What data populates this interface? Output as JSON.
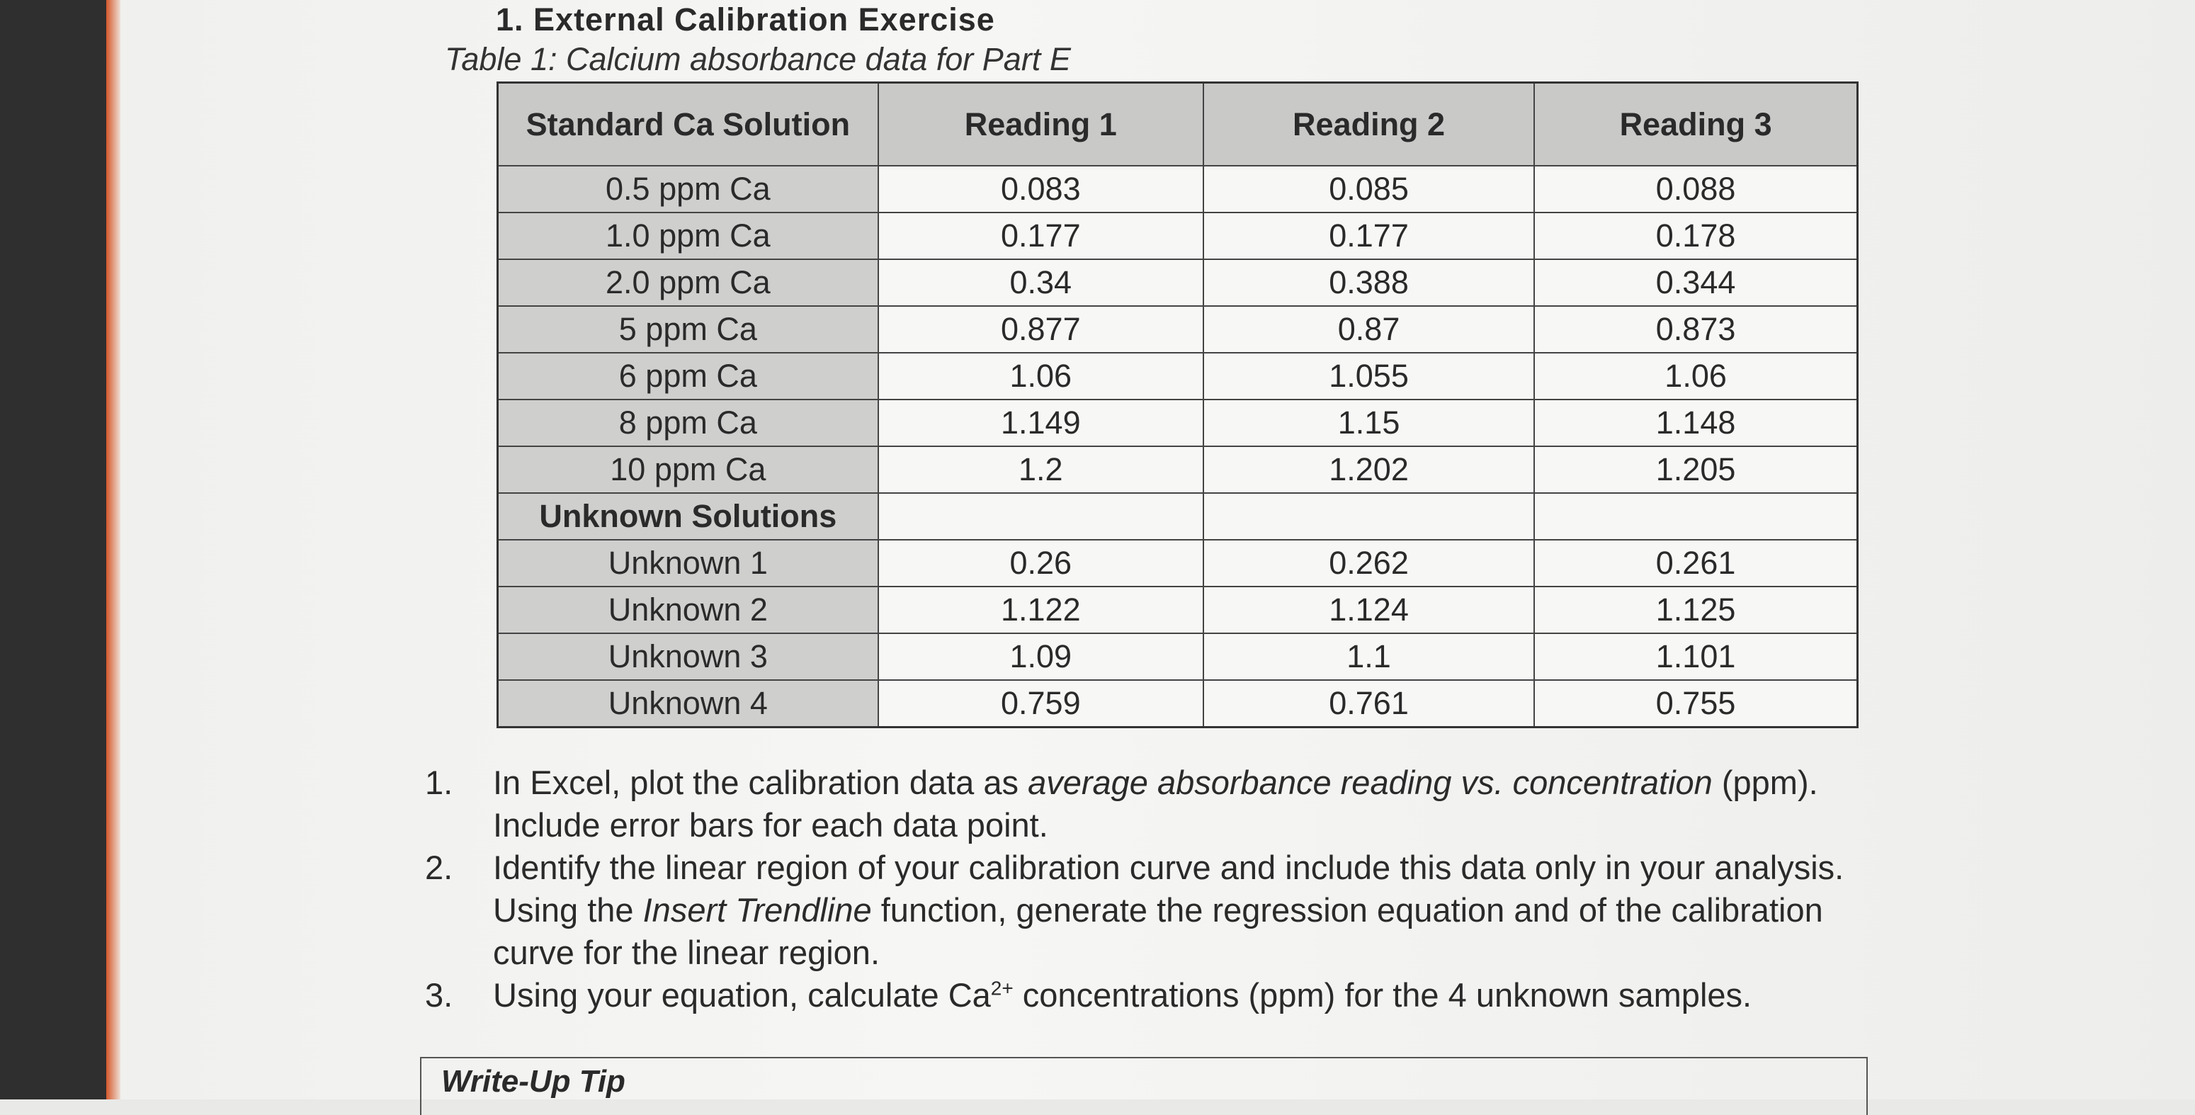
{
  "title": "1. External Calibration Exercise",
  "table": {
    "caption": "Table 1: Calcium absorbance data for Part E",
    "header": [
      "Standard Ca Solution",
      "Reading 1",
      "Reading 2",
      "Reading 3"
    ],
    "rows": [
      [
        "0.5 ppm Ca",
        "0.083",
        "0.085",
        "0.088"
      ],
      [
        "1.0 ppm Ca",
        "0.177",
        "0.177",
        "0.178"
      ],
      [
        "2.0 ppm Ca",
        "0.34",
        "0.388",
        "0.344"
      ],
      [
        "5 ppm Ca",
        "0.877",
        "0.87",
        "0.873"
      ],
      [
        "6 ppm Ca",
        "1.06",
        "1.055",
        "1.06"
      ],
      [
        "8 ppm Ca",
        "1.149",
        "1.15",
        "1.148"
      ],
      [
        "10 ppm Ca",
        "1.2",
        "1.202",
        "1.205"
      ]
    ],
    "section": "Unknown Solutions",
    "unknown_rows": [
      [
        "Unknown 1",
        "0.26",
        "0.262",
        "0.261"
      ],
      [
        "Unknown 2",
        "1.122",
        "1.124",
        "1.125"
      ],
      [
        "Unknown 3",
        "1.09",
        "1.1",
        "1.101"
      ],
      [
        "Unknown 4",
        "0.759",
        "0.761",
        "0.755"
      ]
    ]
  },
  "instructions": [
    {
      "number": "1.",
      "parts": [
        "In Excel, plot the calibration data as ",
        "average absorbance reading vs. concentration",
        " (ppm). Include error bars for each data point."
      ]
    },
    {
      "number": "2.",
      "parts": [
        "Identify the linear region of your calibration curve and include this data only in your analysis. Using the ",
        "Insert Trendline",
        " function, generate the regression equation and of the calibration curve for the linear region."
      ]
    },
    {
      "number": "3.",
      "parts": [
        "Using your equation, calculate Ca",
        "2+",
        " concentrations (ppm) for the 4 unknown samples."
      ]
    }
  ],
  "tip": "Write-Up Tip"
}
